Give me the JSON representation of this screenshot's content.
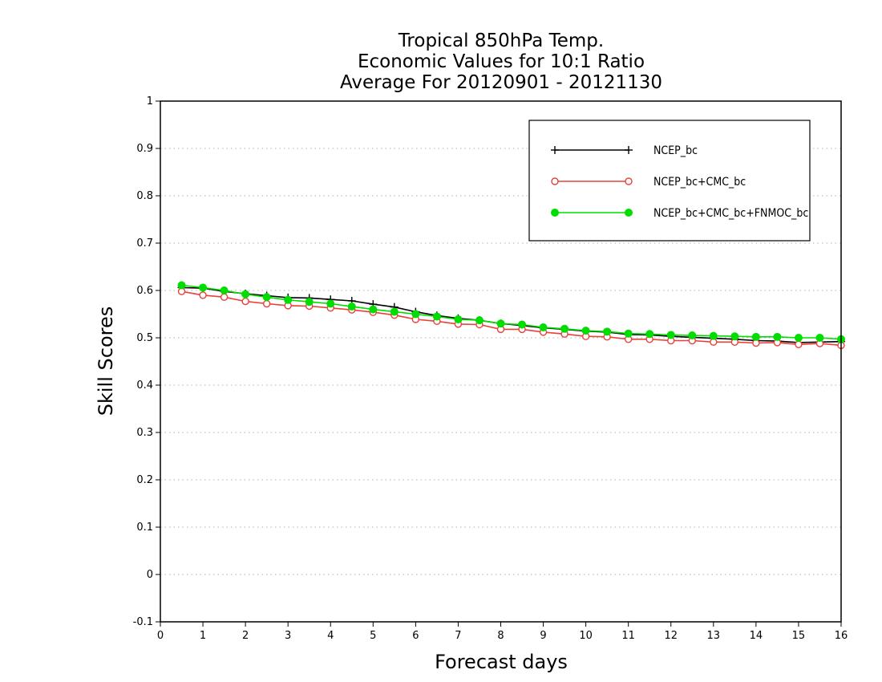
{
  "chart_data": {
    "type": "line",
    "title_lines": [
      "Tropical 850hPa Temp.",
      "Economic Values for 10:1 Ratio",
      "Average For 20120901 - 20121130"
    ],
    "xlabel": "Forecast days",
    "ylabel": "Skill Scores",
    "xlim": [
      0,
      16
    ],
    "ylim": [
      -0.1,
      1
    ],
    "x_ticks": [
      0,
      1,
      2,
      3,
      4,
      5,
      6,
      7,
      8,
      9,
      10,
      11,
      12,
      13,
      14,
      15,
      16
    ],
    "y_ticks": [
      -0.1,
      0,
      0.1,
      0.2,
      0.3,
      0.4,
      0.5,
      0.6,
      0.7,
      0.8,
      0.9,
      1
    ],
    "y_tick_labels": [
      "-0.1",
      "0",
      "0.1",
      "0.2",
      "0.3",
      "0.4",
      "0.5",
      "0.6",
      "0.7",
      "0.8",
      "0.9",
      "1"
    ],
    "grid": "horizontal dotted",
    "legend_position": "top-right",
    "x": [
      0.5,
      1.0,
      1.5,
      2.0,
      2.5,
      3.0,
      3.5,
      4.0,
      4.5,
      5.0,
      5.5,
      6.0,
      6.5,
      7.0,
      7.5,
      8.0,
      8.5,
      9.0,
      9.5,
      10.0,
      10.5,
      11.0,
      11.5,
      12.0,
      12.5,
      13.0,
      13.5,
      14.0,
      14.5,
      15.0,
      15.5,
      16.0
    ],
    "series": [
      {
        "name": "NCEP_bc",
        "color": "#000000",
        "marker": "plus",
        "values": [
          0.606,
          0.605,
          0.598,
          0.593,
          0.589,
          0.585,
          0.584,
          0.581,
          0.578,
          0.571,
          0.565,
          0.555,
          0.547,
          0.541,
          0.537,
          0.53,
          0.526,
          0.521,
          0.518,
          0.514,
          0.512,
          0.507,
          0.506,
          0.503,
          0.501,
          0.499,
          0.497,
          0.494,
          0.493,
          0.49,
          0.491,
          0.492
        ]
      },
      {
        "name": "NCEP_bc+CMC_bc",
        "color": "#e8403a",
        "marker": "open-circle",
        "values": [
          0.598,
          0.59,
          0.586,
          0.577,
          0.572,
          0.568,
          0.567,
          0.563,
          0.559,
          0.554,
          0.548,
          0.539,
          0.535,
          0.529,
          0.528,
          0.518,
          0.518,
          0.512,
          0.508,
          0.503,
          0.502,
          0.497,
          0.497,
          0.494,
          0.494,
          0.491,
          0.491,
          0.489,
          0.49,
          0.486,
          0.488,
          0.484
        ]
      },
      {
        "name": "NCEP_bc+CMC_bc+FNMOC_bc",
        "color": "#00dd00",
        "marker": "filled-circle",
        "values": [
          0.611,
          0.606,
          0.6,
          0.592,
          0.586,
          0.58,
          0.576,
          0.572,
          0.566,
          0.56,
          0.555,
          0.55,
          0.545,
          0.539,
          0.537,
          0.53,
          0.528,
          0.522,
          0.519,
          0.515,
          0.513,
          0.509,
          0.508,
          0.506,
          0.505,
          0.504,
          0.503,
          0.502,
          0.502,
          0.5,
          0.5,
          0.497
        ]
      }
    ]
  }
}
